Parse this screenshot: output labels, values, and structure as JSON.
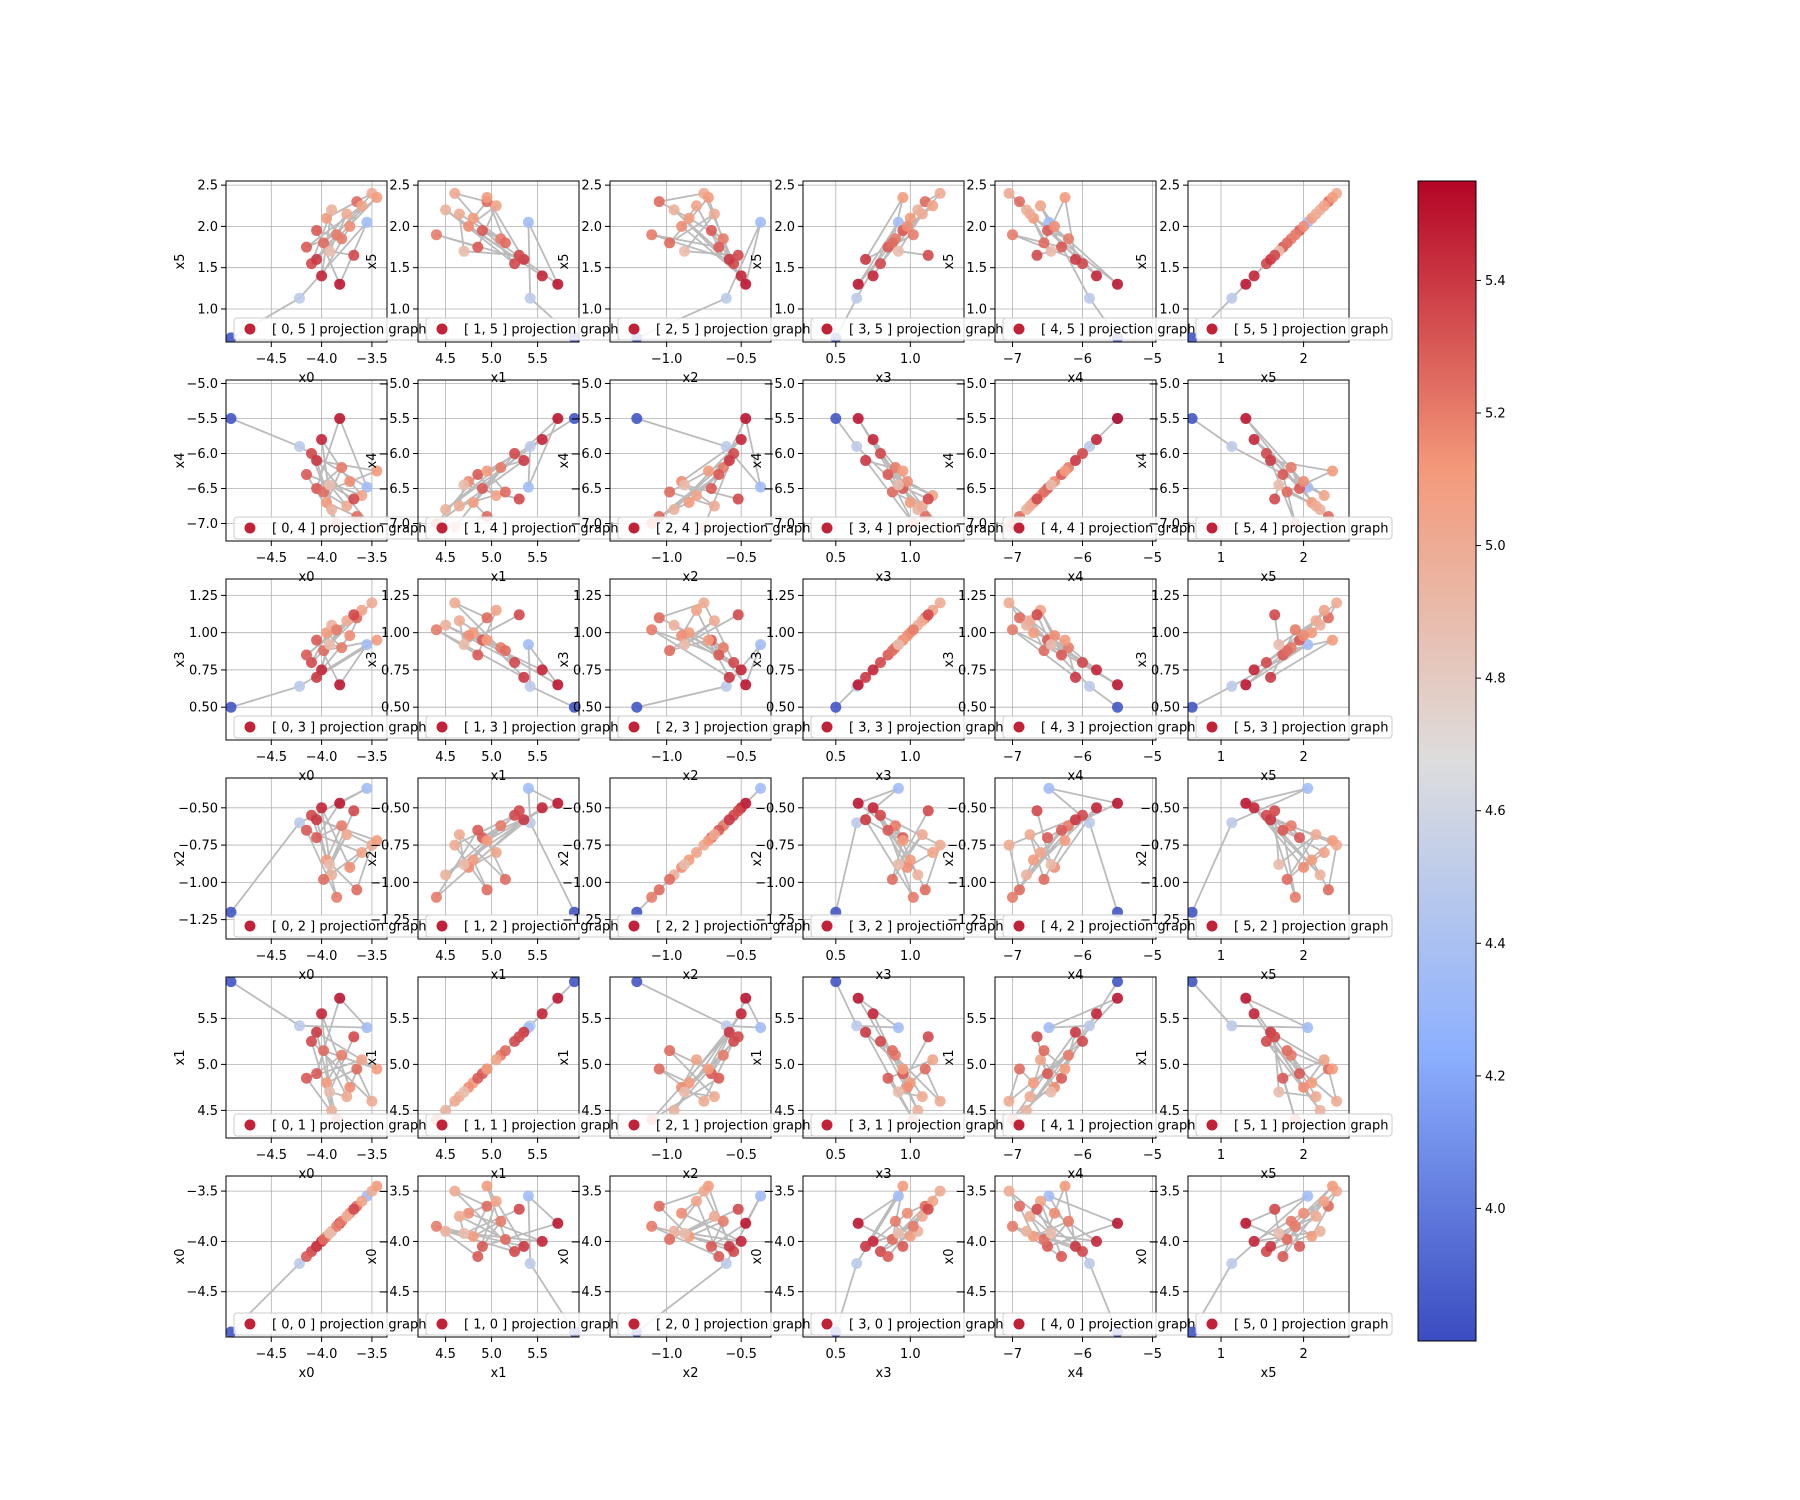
{
  "figure": {
    "type": "scatter-matrix",
    "variables": [
      "x0",
      "x1",
      "x2",
      "x3",
      "x4",
      "x5"
    ],
    "legend_template": "[ {i}, {j} ] projection graph",
    "colormap": "coolwarm",
    "colorbar_range": [
      3.8,
      5.55
    ],
    "colorbar_ticks": [
      "4.0",
      "4.2",
      "4.4",
      "4.6",
      "4.8",
      "5.0",
      "5.2",
      "5.4"
    ]
  },
  "chart_data": {
    "type": "scatter",
    "layout": "6x6 pairwise projection grid, rows top-to-bottom = x5..x0, columns left-to-right = x0..x5",
    "grid": true,
    "connected_points": true,
    "line_color": "#bbbbbb",
    "axes": {
      "x0": {
        "range": [
          -4.95,
          -3.35
        ],
        "ticks": [
          -4.5,
          -4.0,
          -3.5
        ],
        "tick_labels": [
          "−4.5",
          "−4.0",
          "−3.5"
        ]
      },
      "x1": {
        "range": [
          4.2,
          5.95
        ],
        "ticks": [
          4.5,
          5.0,
          5.5
        ],
        "tick_labels": [
          "4.5",
          "5.0",
          "5.5"
        ]
      },
      "x2": {
        "range": [
          -1.38,
          -0.3
        ],
        "ticks": [
          -1.0,
          -0.5
        ],
        "tick_labels": [
          "−1.0",
          "−0.5"
        ]
      },
      "x3": {
        "range": [
          0.28,
          1.36
        ],
        "ticks": [
          0.5,
          1.0
        ],
        "tick_labels": [
          "0.5",
          "1.0"
        ]
      },
      "x4": {
        "range": [
          -7.25,
          -4.95
        ],
        "ticks": [
          -7,
          -6,
          -5
        ],
        "tick_labels": [
          "−7",
          "−6",
          "−5"
        ]
      },
      "x5": {
        "range": [
          0.6,
          2.55
        ],
        "ticks": [
          1,
          2
        ],
        "tick_labels": [
          "1",
          "2"
        ]
      }
    },
    "y_axes": {
      "x5": {
        "ticks": [
          1.0,
          1.5,
          2.0,
          2.5
        ],
        "tick_labels": [
          "1.0",
          "1.5",
          "2.0",
          "2.5"
        ]
      },
      "x4": {
        "ticks": [
          -5.0,
          -5.5,
          -6.0,
          -6.5,
          -7.0
        ],
        "tick_labels": [
          "−5.0",
          "−5.5",
          "−6.0",
          "−6.5",
          "−7.0"
        ]
      },
      "x3": {
        "ticks": [
          0.5,
          0.75,
          1.0,
          1.25
        ],
        "tick_labels": [
          "0.50",
          "0.75",
          "1.00",
          "1.25"
        ]
      },
      "x2": {
        "ticks": [
          -0.5,
          -0.75,
          -1.0,
          -1.25
        ],
        "tick_labels": [
          "−0.50",
          "−0.75",
          "−1.00",
          "−1.25"
        ]
      },
      "x1": {
        "ticks": [
          4.5,
          5.0,
          5.5
        ],
        "tick_labels": [
          "4.5",
          "5.0",
          "5.5"
        ]
      },
      "x0": {
        "ticks": [
          -3.5,
          -4.0,
          -4.5
        ],
        "tick_labels": [
          "−3.5",
          "−4.0",
          "−4.5"
        ]
      }
    },
    "points": [
      {
        "x0": -4.9,
        "x1": 5.9,
        "x2": -1.2,
        "x3": 0.5,
        "x4": -5.5,
        "x5": 0.65,
        "c": 3.85
      },
      {
        "x0": -4.22,
        "x1": 5.42,
        "x2": -0.6,
        "x3": 0.64,
        "x4": -5.9,
        "x5": 1.13,
        "c": 4.5
      },
      {
        "x0": -3.55,
        "x1": 5.4,
        "x2": -0.37,
        "x3": 0.92,
        "x4": -6.48,
        "x5": 2.05,
        "c": 4.35
      },
      {
        "x0": -3.82,
        "x1": 5.72,
        "x2": -0.47,
        "x3": 0.65,
        "x4": -5.5,
        "x5": 1.3,
        "c": 5.5
      },
      {
        "x0": -4.05,
        "x1": 4.9,
        "x2": -0.7,
        "x3": 0.95,
        "x4": -6.5,
        "x5": 1.95,
        "c": 5.3
      },
      {
        "x0": -3.8,
        "x1": 5.1,
        "x2": -0.62,
        "x3": 0.9,
        "x4": -6.2,
        "x5": 1.85,
        "c": 5.2
      },
      {
        "x0": -3.95,
        "x1": 4.8,
        "x2": -0.85,
        "x3": 1.0,
        "x4": -6.7,
        "x5": 2.1,
        "c": 5.1
      },
      {
        "x0": -3.65,
        "x1": 4.95,
        "x2": -1.05,
        "x3": 1.1,
        "x4": -6.9,
        "x5": 2.3,
        "c": 5.25
      },
      {
        "x0": -3.5,
        "x1": 4.6,
        "x2": -0.75,
        "x3": 1.2,
        "x4": -7.05,
        "x5": 2.4,
        "c": 5.0
      },
      {
        "x0": -4.1,
        "x1": 5.25,
        "x2": -0.55,
        "x3": 0.8,
        "x4": -6.0,
        "x5": 1.55,
        "c": 5.35
      },
      {
        "x0": -3.9,
        "x1": 4.5,
        "x2": -0.95,
        "x3": 1.05,
        "x4": -6.8,
        "x5": 2.2,
        "c": 4.95
      },
      {
        "x0": -4.0,
        "x1": 5.55,
        "x2": -0.5,
        "x3": 0.75,
        "x4": -5.8,
        "x5": 1.4,
        "c": 5.45
      },
      {
        "x0": -3.72,
        "x1": 4.75,
        "x2": -0.9,
        "x3": 0.98,
        "x4": -6.4,
        "x5": 2.0,
        "c": 5.15
      },
      {
        "x0": -3.6,
        "x1": 5.05,
        "x2": -0.8,
        "x3": 1.15,
        "x4": -6.6,
        "x5": 2.25,
        "c": 5.05
      },
      {
        "x0": -4.15,
        "x1": 4.85,
        "x2": -0.65,
        "x3": 0.85,
        "x4": -6.3,
        "x5": 1.75,
        "c": 5.3
      },
      {
        "x0": -3.85,
        "x1": 4.4,
        "x2": -1.1,
        "x3": 1.02,
        "x4": -7.0,
        "x5": 1.9,
        "c": 5.2
      },
      {
        "x0": -4.05,
        "x1": 5.35,
        "x2": -0.58,
        "x3": 0.7,
        "x4": -6.1,
        "x5": 1.6,
        "c": 5.4
      },
      {
        "x0": -3.45,
        "x1": 4.95,
        "x2": -0.72,
        "x3": 0.95,
        "x4": -6.25,
        "x5": 2.35,
        "c": 5.1
      },
      {
        "x0": -3.98,
        "x1": 5.15,
        "x2": -0.98,
        "x3": 0.88,
        "x4": -6.55,
        "x5": 1.8,
        "c": 5.25
      },
      {
        "x0": -3.75,
        "x1": 4.65,
        "x2": -0.68,
        "x3": 1.08,
        "x4": -6.75,
        "x5": 2.15,
        "c": 5.0
      },
      {
        "x0": -3.92,
        "x1": 4.7,
        "x2": -0.88,
        "x3": 0.92,
        "x4": -6.45,
        "x5": 1.7,
        "c": 4.9
      },
      {
        "x0": -3.68,
        "x1": 5.3,
        "x2": -0.52,
        "x3": 1.12,
        "x4": -6.65,
        "x5": 1.65,
        "c": 5.35
      }
    ],
    "colorbar": {
      "min": 3.8,
      "max": 5.55,
      "ticks": [
        4.0,
        4.2,
        4.4,
        4.6,
        4.8,
        5.0,
        5.2,
        5.4
      ],
      "colormap": "coolwarm"
    }
  }
}
